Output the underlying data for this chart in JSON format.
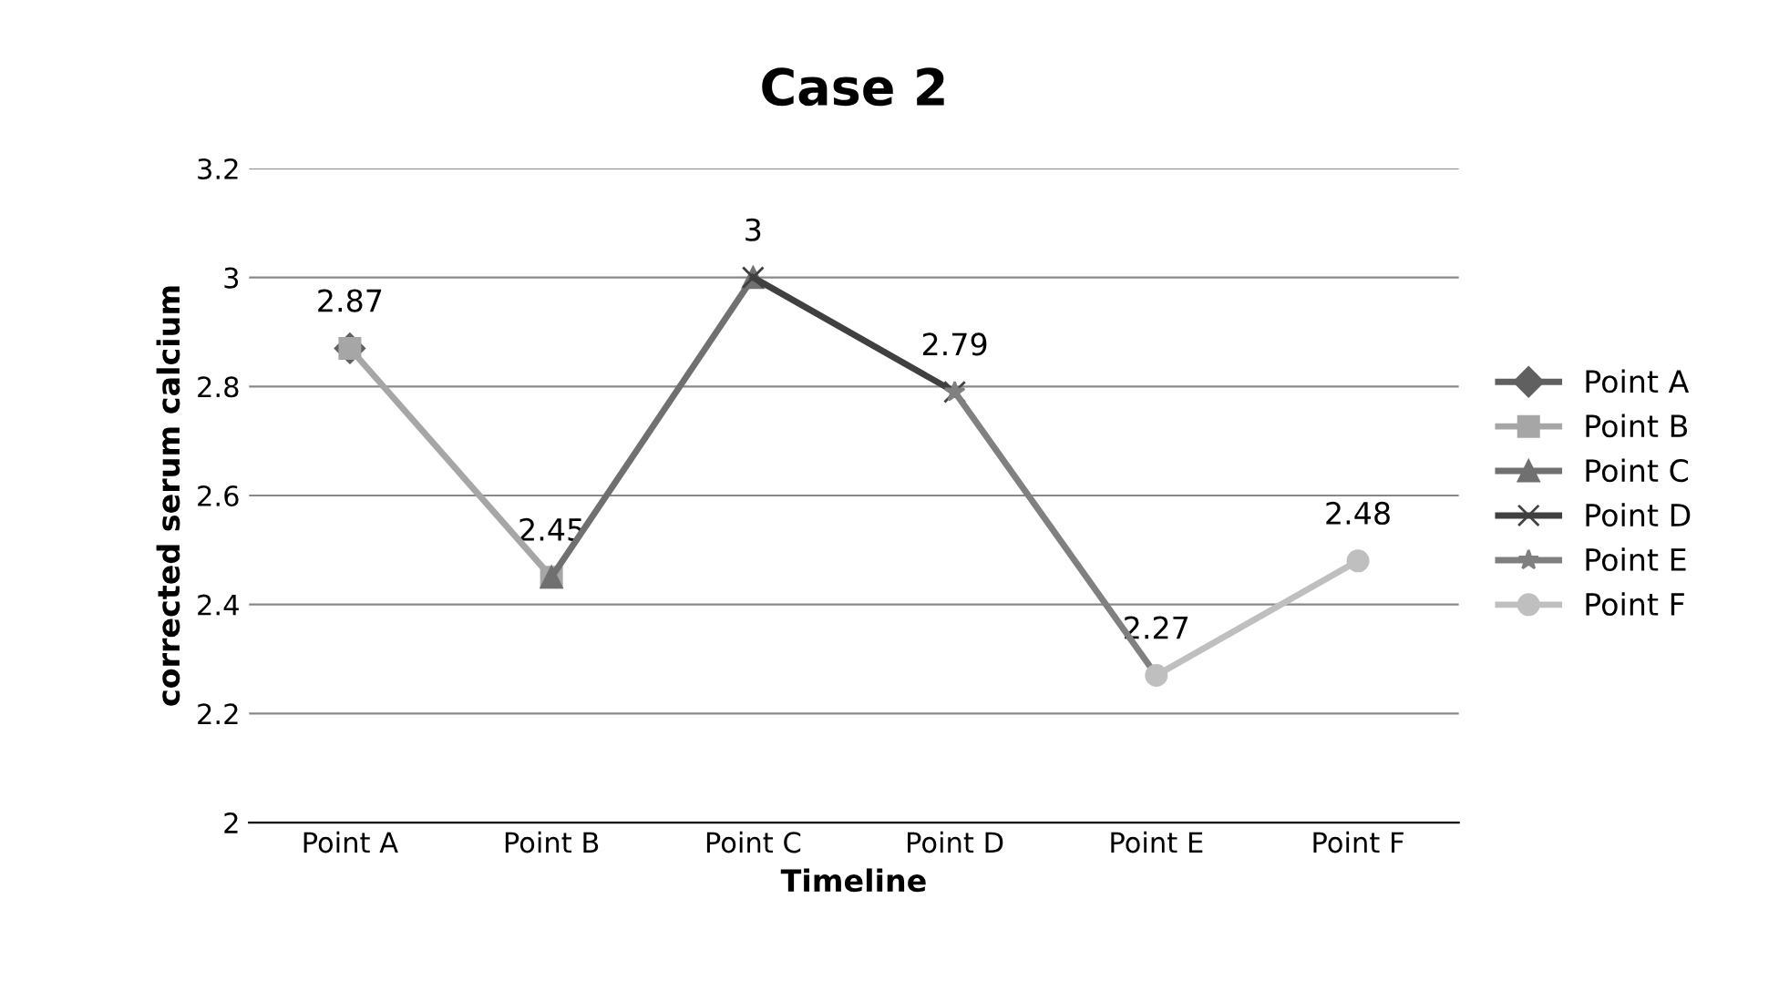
{
  "chart_data": {
    "type": "line",
    "title": "Case 2",
    "xlabel": "Timeline",
    "ylabel": "corrected serum calcium",
    "categories": [
      "Point A",
      "Point B",
      "Point C",
      "Point D",
      "Point E",
      "Point F"
    ],
    "series": [
      {
        "name": "Point A",
        "color": "#606060",
        "marker": "diamond",
        "values": [
          2.87,
          null,
          null,
          null,
          null,
          null
        ],
        "value_labels": [
          "2.87",
          null,
          null,
          null,
          null,
          null
        ]
      },
      {
        "name": "Point B",
        "color": "#a6a6a6",
        "marker": "square",
        "values": [
          2.87,
          2.45,
          null,
          null,
          null,
          null
        ],
        "value_labels": [
          null,
          "2.45",
          null,
          null,
          null,
          null
        ]
      },
      {
        "name": "Point C",
        "color": "#707070",
        "marker": "triangle",
        "values": [
          null,
          2.45,
          3,
          null,
          null,
          null
        ],
        "value_labels": [
          null,
          null,
          "3",
          null,
          null,
          null
        ]
      },
      {
        "name": "Point D",
        "color": "#404040",
        "marker": "cross",
        "values": [
          null,
          null,
          3,
          2.79,
          null,
          null
        ],
        "value_labels": [
          null,
          null,
          null,
          "2.79",
          null,
          null
        ]
      },
      {
        "name": "Point E",
        "color": "#808080",
        "marker": "star",
        "values": [
          null,
          null,
          null,
          2.79,
          2.27,
          null
        ],
        "value_labels": [
          null,
          null,
          null,
          null,
          "2.27",
          null
        ]
      },
      {
        "name": "Point F",
        "color": "#bfbfbf",
        "marker": "circle",
        "values": [
          null,
          null,
          null,
          null,
          2.27,
          2.48
        ],
        "value_labels": [
          null,
          null,
          null,
          null,
          null,
          "2.48"
        ]
      }
    ],
    "ylim": [
      2,
      3.2
    ],
    "yticks": [
      2,
      2.2,
      2.4,
      2.6,
      2.8,
      3,
      3.2
    ],
    "grid": "y",
    "legend": "right"
  }
}
